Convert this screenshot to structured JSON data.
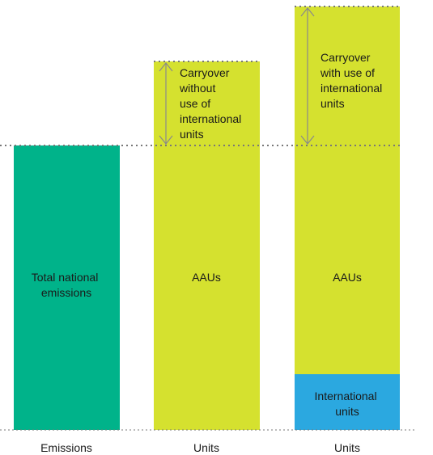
{
  "colors": {
    "emissions": "#00b38a",
    "aau": "#d5e12f",
    "international": "#2ba8e0",
    "dotted": "#777777",
    "arrow": "#8a8a8a",
    "text": "#1a1a1a"
  },
  "columns": [
    {
      "axis_label": "Emissions",
      "segment_label": "Total national emissions"
    },
    {
      "axis_label": "Units",
      "segment_label": "AAUs",
      "carryover_label": "Carryover without use of international units"
    },
    {
      "axis_label": "Units",
      "segment_label": "AAUs",
      "carryover_label": "Carryover with use of international units",
      "international_label": "International units"
    }
  ]
}
